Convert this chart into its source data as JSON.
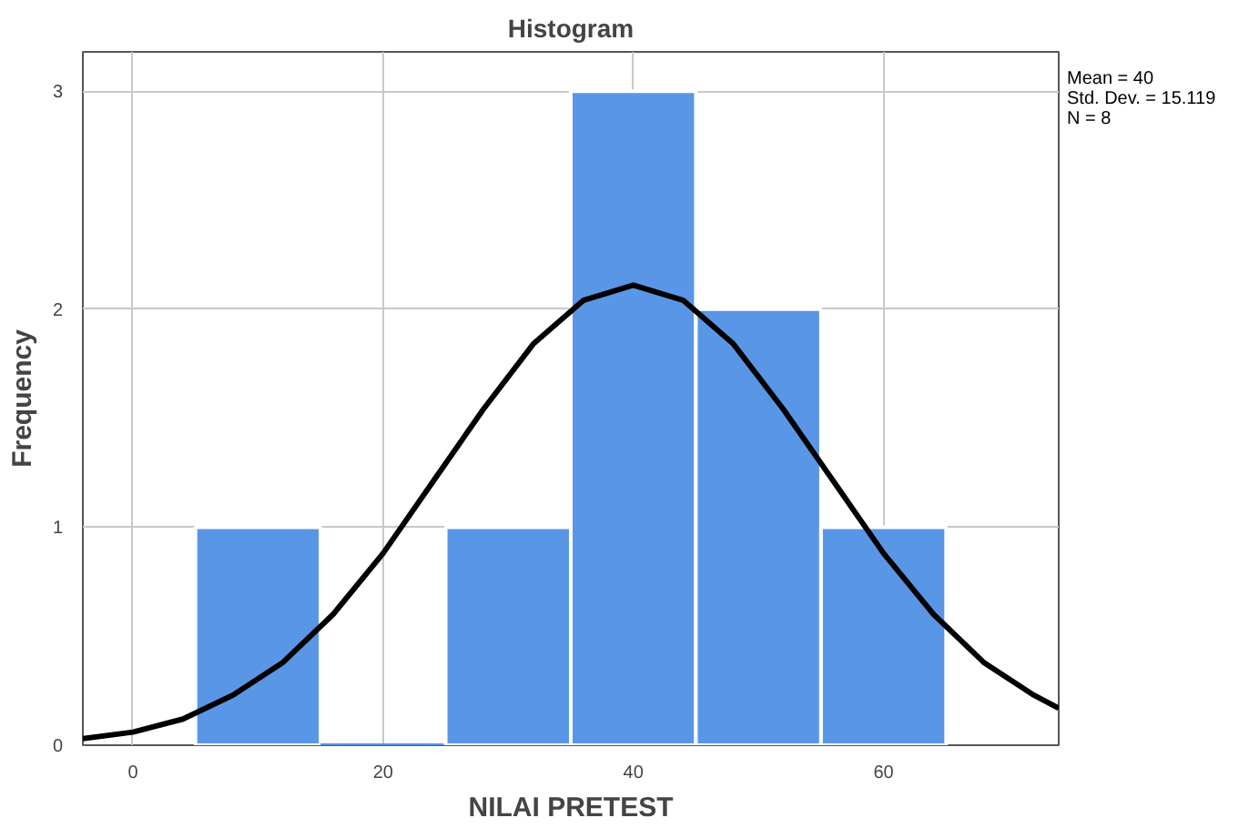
{
  "chart_data": {
    "type": "histogram",
    "title": "Histogram",
    "xlabel": "NILAI PRETEST",
    "ylabel": "Frequency",
    "bins": [
      5,
      15,
      25,
      35,
      45,
      55,
      65
    ],
    "values": [
      1,
      0,
      1,
      3,
      2,
      1
    ],
    "color": "#5a96e6",
    "series": [
      {
        "type": "line",
        "color": "#000000",
        "x": [
          -4,
          0,
          4,
          8,
          12,
          16,
          20,
          24,
          28,
          32,
          36,
          40,
          44,
          48,
          52,
          56,
          60,
          64,
          68,
          72,
          74
        ],
        "values": [
          0.03,
          0.06,
          0.12,
          0.23,
          0.38,
          0.6,
          0.88,
          1.21,
          1.54,
          1.84,
          2.04,
          2.11,
          2.04,
          1.84,
          1.54,
          1.21,
          0.88,
          0.6,
          0.38,
          0.23,
          0.17
        ]
      }
    ],
    "xlim": [
      -4,
      74
    ],
    "ylim": [
      0,
      3.18
    ],
    "xticks": [
      0,
      20,
      40,
      60
    ],
    "yticks": [
      0,
      1,
      2,
      3
    ],
    "grid": true,
    "annotations": [
      "Mean = 40",
      "Std. Dev. = 15.119",
      "N = 8"
    ]
  }
}
